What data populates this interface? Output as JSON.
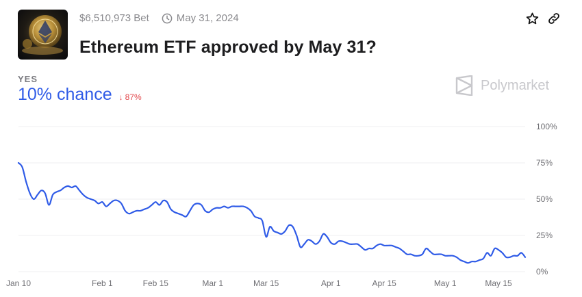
{
  "market": {
    "volume": "$6,510,973 Bet",
    "end_date": "May 31, 2024",
    "title": "Ethereum ETF approved by May 31?",
    "thumbnail_icon": "ethereum-coin-image"
  },
  "outcome": {
    "label": "YES",
    "chance": "10% chance",
    "change": "87%",
    "change_direction": "down",
    "change_color": "#e2484c",
    "accent_color": "#2f5be7"
  },
  "actions": {
    "bookmark_icon": "star-icon",
    "link_icon": "link-icon"
  },
  "brand": {
    "name": "Polymarket"
  },
  "chart_data": {
    "type": "line",
    "x_tick_labels": [
      "Jan 10",
      "Feb 1",
      "Feb 15",
      "Mar 1",
      "Mar 15",
      "Apr 1",
      "Apr 15",
      "May 1",
      "May 15"
    ],
    "y_tick_labels": [
      "100%",
      "75%",
      "50%",
      "25%",
      "0%"
    ],
    "ylim": [
      0,
      100
    ],
    "xlim": [
      "2024-01-10",
      "2024-05-22"
    ],
    "grid": true,
    "series": [
      {
        "color": "#2f5be7",
        "points": [
          [
            "2024-01-10",
            75
          ],
          [
            "2024-01-11",
            72
          ],
          [
            "2024-01-12",
            62
          ],
          [
            "2024-01-13",
            54
          ],
          [
            "2024-01-14",
            50
          ],
          [
            "2024-01-15",
            53
          ],
          [
            "2024-01-16",
            56
          ],
          [
            "2024-01-17",
            54
          ],
          [
            "2024-01-18",
            46
          ],
          [
            "2024-01-19",
            53
          ],
          [
            "2024-01-20",
            55
          ],
          [
            "2024-01-21",
            56
          ],
          [
            "2024-01-22",
            58
          ],
          [
            "2024-01-23",
            59
          ],
          [
            "2024-01-24",
            58
          ],
          [
            "2024-01-25",
            59
          ],
          [
            "2024-01-26",
            56
          ],
          [
            "2024-01-27",
            53
          ],
          [
            "2024-01-28",
            51
          ],
          [
            "2024-01-29",
            50
          ],
          [
            "2024-01-30",
            49
          ],
          [
            "2024-01-31",
            47
          ],
          [
            "2024-02-01",
            48
          ],
          [
            "2024-02-02",
            45
          ],
          [
            "2024-02-03",
            47
          ],
          [
            "2024-02-04",
            49
          ],
          [
            "2024-02-05",
            49
          ],
          [
            "2024-02-06",
            47
          ],
          [
            "2024-02-07",
            42
          ],
          [
            "2024-02-08",
            40
          ],
          [
            "2024-02-09",
            41
          ],
          [
            "2024-02-10",
            42
          ],
          [
            "2024-02-11",
            42
          ],
          [
            "2024-02-12",
            43
          ],
          [
            "2024-02-13",
            44
          ],
          [
            "2024-02-14",
            46
          ],
          [
            "2024-02-15",
            48
          ],
          [
            "2024-02-16",
            46
          ],
          [
            "2024-02-17",
            49
          ],
          [
            "2024-02-18",
            48
          ],
          [
            "2024-02-19",
            43
          ],
          [
            "2024-02-20",
            41
          ],
          [
            "2024-02-21",
            40
          ],
          [
            "2024-02-22",
            39
          ],
          [
            "2024-02-23",
            38
          ],
          [
            "2024-02-24",
            42
          ],
          [
            "2024-02-25",
            46
          ],
          [
            "2024-02-26",
            47
          ],
          [
            "2024-02-27",
            46
          ],
          [
            "2024-02-28",
            42
          ],
          [
            "2024-02-29",
            41
          ],
          [
            "2024-03-01",
            43
          ],
          [
            "2024-03-02",
            44
          ],
          [
            "2024-03-03",
            44
          ],
          [
            "2024-03-04",
            45
          ],
          [
            "2024-03-05",
            44
          ],
          [
            "2024-03-06",
            45
          ],
          [
            "2024-03-07",
            45
          ],
          [
            "2024-03-08",
            45
          ],
          [
            "2024-03-09",
            45
          ],
          [
            "2024-03-10",
            44
          ],
          [
            "2024-03-11",
            42
          ],
          [
            "2024-03-12",
            38
          ],
          [
            "2024-03-13",
            37
          ],
          [
            "2024-03-14",
            35
          ],
          [
            "2024-03-15",
            24
          ],
          [
            "2024-03-16",
            31
          ],
          [
            "2024-03-17",
            28
          ],
          [
            "2024-03-18",
            27
          ],
          [
            "2024-03-19",
            26
          ],
          [
            "2024-03-20",
            28
          ],
          [
            "2024-03-21",
            32
          ],
          [
            "2024-03-22",
            31
          ],
          [
            "2024-03-23",
            25
          ],
          [
            "2024-03-24",
            17
          ],
          [
            "2024-03-25",
            19
          ],
          [
            "2024-03-26",
            22
          ],
          [
            "2024-03-27",
            21
          ],
          [
            "2024-03-28",
            19
          ],
          [
            "2024-03-29",
            21
          ],
          [
            "2024-03-30",
            26
          ],
          [
            "2024-03-31",
            24
          ],
          [
            "2024-04-01",
            20
          ],
          [
            "2024-04-02",
            19
          ],
          [
            "2024-04-03",
            21
          ],
          [
            "2024-04-04",
            21
          ],
          [
            "2024-04-05",
            20
          ],
          [
            "2024-04-06",
            19
          ],
          [
            "2024-04-07",
            19
          ],
          [
            "2024-04-08",
            19
          ],
          [
            "2024-04-09",
            17
          ],
          [
            "2024-04-10",
            15
          ],
          [
            "2024-04-11",
            16
          ],
          [
            "2024-04-12",
            16
          ],
          [
            "2024-04-13",
            18
          ],
          [
            "2024-04-14",
            19
          ],
          [
            "2024-04-15",
            18
          ],
          [
            "2024-04-16",
            18
          ],
          [
            "2024-04-17",
            18
          ],
          [
            "2024-04-18",
            17
          ],
          [
            "2024-04-19",
            16
          ],
          [
            "2024-04-20",
            14
          ],
          [
            "2024-04-21",
            12
          ],
          [
            "2024-04-22",
            12
          ],
          [
            "2024-04-23",
            11
          ],
          [
            "2024-04-24",
            11
          ],
          [
            "2024-04-25",
            12
          ],
          [
            "2024-04-26",
            16
          ],
          [
            "2024-04-27",
            14
          ],
          [
            "2024-04-28",
            12
          ],
          [
            "2024-04-29",
            12
          ],
          [
            "2024-04-30",
            12
          ],
          [
            "2024-05-01",
            11
          ],
          [
            "2024-05-02",
            11
          ],
          [
            "2024-05-03",
            11
          ],
          [
            "2024-05-04",
            10
          ],
          [
            "2024-05-05",
            8
          ],
          [
            "2024-05-06",
            7
          ],
          [
            "2024-05-07",
            6
          ],
          [
            "2024-05-08",
            7
          ],
          [
            "2024-05-09",
            7
          ],
          [
            "2024-05-10",
            8
          ],
          [
            "2024-05-11",
            9
          ],
          [
            "2024-05-12",
            13
          ],
          [
            "2024-05-13",
            11
          ],
          [
            "2024-05-14",
            16
          ],
          [
            "2024-05-15",
            15
          ],
          [
            "2024-05-16",
            13
          ],
          [
            "2024-05-17",
            10
          ],
          [
            "2024-05-18",
            10
          ],
          [
            "2024-05-19",
            11
          ],
          [
            "2024-05-20",
            11
          ],
          [
            "2024-05-21",
            13
          ],
          [
            "2024-05-22",
            10
          ]
        ]
      }
    ]
  }
}
